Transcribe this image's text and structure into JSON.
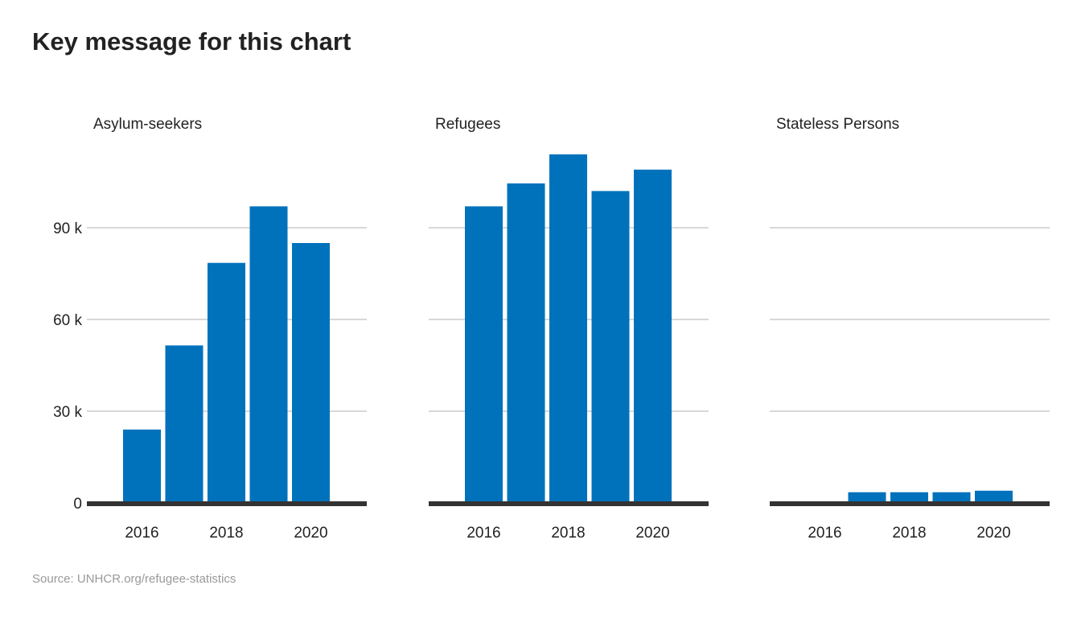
{
  "title": "Key message for this chart",
  "source": "Source: UNHCR.org/refugee-statistics",
  "colors": {
    "bar": "#0072bc",
    "grid": "#cccccc",
    "baseline": "#333333",
    "text": "#222222"
  },
  "chart_data": {
    "type": "bar",
    "layout": "small-multiples",
    "categories": [
      2016,
      2017,
      2018,
      2019,
      2020
    ],
    "x_tick_labels": [
      "2016",
      "2018",
      "2020"
    ],
    "ylim": [
      0,
      120000
    ],
    "y_ticks": [
      0,
      30000,
      60000,
      90000
    ],
    "y_tick_labels": [
      "0",
      "30 k",
      "60 k",
      "90 k"
    ],
    "grid": true,
    "panels": [
      {
        "name": "Asylum-seekers",
        "values": [
          24000,
          51500,
          78500,
          97000,
          85000
        ]
      },
      {
        "name": "Refugees",
        "values": [
          97000,
          104500,
          114000,
          102000,
          109000
        ]
      },
      {
        "name": "Stateless Persons",
        "values": [
          0,
          3500,
          3500,
          3500,
          4000
        ]
      }
    ]
  }
}
